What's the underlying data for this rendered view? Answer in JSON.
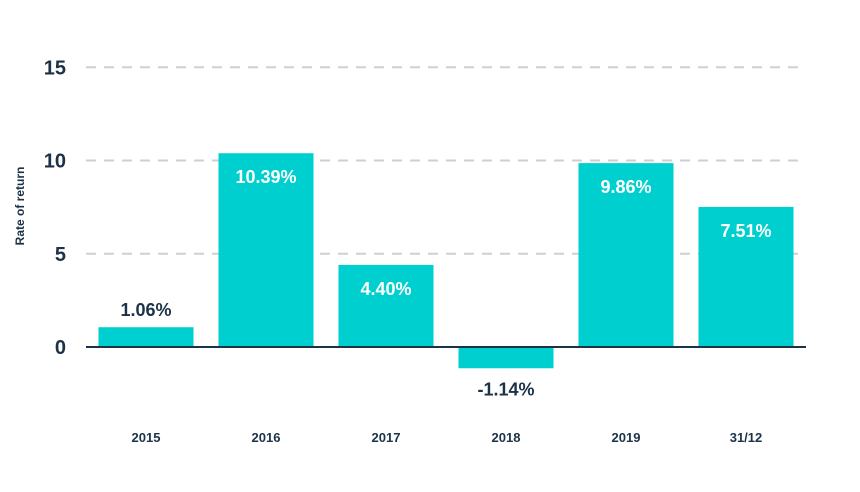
{
  "chart_data": {
    "type": "bar",
    "title": "",
    "xlabel": "",
    "ylabel": "Rate of return",
    "categories": [
      "2015",
      "2016",
      "2017",
      "2018",
      "2019",
      "31/12"
    ],
    "values": [
      1.06,
      10.39,
      4.4,
      -1.14,
      9.86,
      7.51
    ],
    "data_labels": [
      "1.06%",
      "10.39%",
      "4.40%",
      "-1.14%",
      "9.86%",
      "7.51%"
    ],
    "yticks": [
      0,
      5,
      10,
      15
    ],
    "ylim": [
      -1.14,
      15
    ],
    "grid": "horizontal-dashed",
    "legend": "none",
    "colors": {
      "bar": "#00cfd0",
      "label_inside": "#ffffff",
      "label_outside": "#1b3247",
      "axis": "#1b3247",
      "grid": "#cfcfcf"
    }
  }
}
